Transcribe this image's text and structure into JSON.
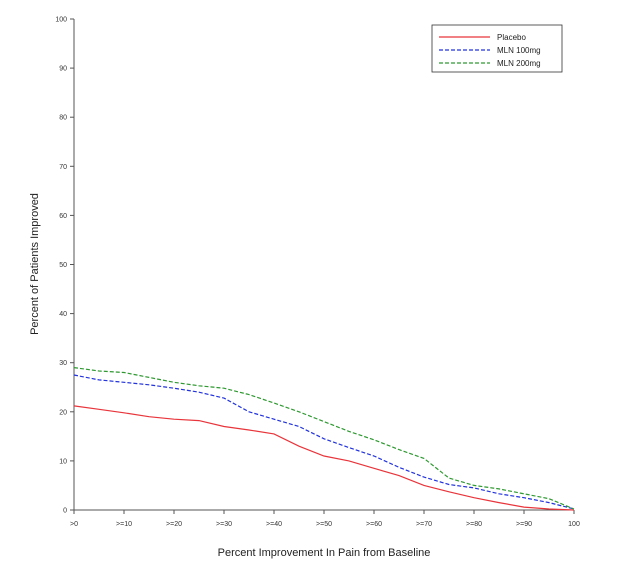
{
  "chart_data": {
    "type": "line",
    "title": "",
    "xlabel": "Percent Improvement In Pain from Baseline",
    "ylabel": "Percent of Patients Improved",
    "xlim": [
      0,
      100
    ],
    "ylim": [
      0,
      100
    ],
    "x_ticks": [
      0,
      10,
      20,
      30,
      40,
      50,
      60,
      70,
      80,
      90,
      100
    ],
    "x_tick_labels": [
      ">0",
      ">=10",
      ">=20",
      ">=30",
      ">=40",
      ">=50",
      ">=60",
      ">=70",
      ">=80",
      ">=90",
      "100"
    ],
    "y_ticks": [
      0,
      10,
      20,
      30,
      40,
      50,
      60,
      70,
      80,
      90,
      100
    ],
    "y_tick_labels": [
      "0",
      "10",
      "20",
      "30",
      "40",
      "50",
      "60",
      "70",
      "80",
      "90",
      "100"
    ],
    "grid": false,
    "legend_position": "top-right",
    "x": [
      0,
      5,
      10,
      15,
      20,
      25,
      30,
      35,
      40,
      45,
      50,
      55,
      60,
      65,
      70,
      75,
      80,
      85,
      90,
      95,
      100
    ],
    "series": [
      {
        "name": "Placebo",
        "color": "#e8343a",
        "style": "solid",
        "values": [
          21.2,
          20.5,
          19.8,
          19.0,
          18.5,
          18.2,
          17.0,
          16.3,
          15.5,
          13.0,
          11.0,
          10.0,
          8.5,
          7.0,
          5.0,
          3.7,
          2.5,
          1.5,
          0.6,
          0.2,
          0.0
        ]
      },
      {
        "name": "MLN 100mg",
        "color": "#2233dd",
        "style": "dashed",
        "values": [
          27.5,
          26.5,
          26.0,
          25.5,
          24.8,
          24.0,
          22.8,
          20.0,
          18.5,
          17.0,
          14.5,
          12.7,
          11.0,
          8.7,
          6.7,
          5.2,
          4.5,
          3.3,
          2.5,
          1.5,
          0.2
        ]
      },
      {
        "name": "MLN 200mg",
        "color": "#2e9930",
        "style": "dashed",
        "values": [
          29.0,
          28.3,
          28.0,
          27.0,
          26.0,
          25.3,
          24.8,
          23.5,
          21.8,
          20.0,
          18.0,
          16.0,
          14.3,
          12.3,
          10.5,
          6.5,
          5.0,
          4.3,
          3.3,
          2.3,
          0.2
        ]
      }
    ]
  }
}
